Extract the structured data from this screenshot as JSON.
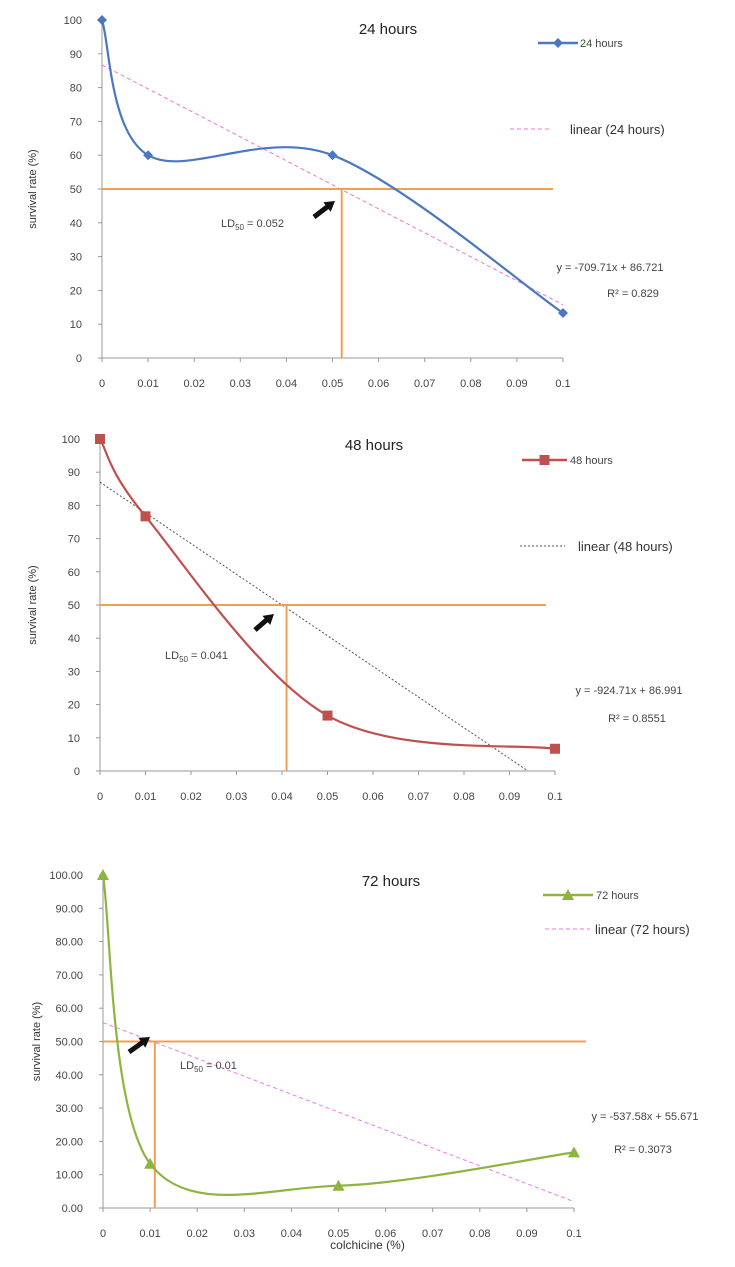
{
  "chart_data": [
    {
      "type": "line",
      "title": "24 hours",
      "ylabel": "survival rate (%)",
      "xlabel": "",
      "x_ticks": [
        "0",
        "0.01",
        "0.02",
        "0.03",
        "0.04",
        "0.05",
        "0.06",
        "0.07",
        "0.08",
        "0.09",
        "0.1"
      ],
      "y_ticks": [
        "0",
        "10",
        "20",
        "30",
        "40",
        "50",
        "60",
        "70",
        "80",
        "90",
        "100"
      ],
      "xlim": [
        0,
        0.1
      ],
      "ylim": [
        0,
        100
      ],
      "series": [
        {
          "name": "24 hours",
          "x": [
            0,
            0.01,
            0.05,
            0.1
          ],
          "y": [
            100,
            60,
            60,
            13.3
          ],
          "color": "#4a78c0",
          "marker": "diamond"
        }
      ],
      "trendline": {
        "name": "linear (24 hours)",
        "slope": -709.71,
        "intercept": 86.721,
        "color": "#ee77cc",
        "dash": "4,3"
      },
      "equation": "y = -709.71x + 86.721",
      "r2": "R² = 0.829",
      "ld50_value": 0.052,
      "ld50_prefix": "LD",
      "ld50_sub": "50",
      "ld50_suffix": " = 0.052",
      "reference_line_y": 50,
      "ref_color": "#f0a050"
    },
    {
      "type": "line",
      "title": "48 hours",
      "ylabel": "survival rate (%)",
      "xlabel": "",
      "x_ticks": [
        "0",
        "0.01",
        "0.02",
        "0.03",
        "0.04",
        "0.05",
        "0.06",
        "0.07",
        "0.08",
        "0.09",
        "0.1"
      ],
      "y_ticks": [
        "0",
        "10",
        "20",
        "30",
        "40",
        "50",
        "60",
        "70",
        "80",
        "90",
        "100"
      ],
      "xlim": [
        0,
        0.1
      ],
      "ylim": [
        0,
        100
      ],
      "series": [
        {
          "name": "48 hours",
          "x": [
            0,
            0.01,
            0.05,
            0.1
          ],
          "y": [
            100,
            76.7,
            16.7,
            6.7
          ],
          "color": "#c0504d",
          "marker": "square"
        }
      ],
      "trendline": {
        "name": "linear (48 hours)",
        "slope": -924.71,
        "intercept": 86.991,
        "color": "#555555",
        "dash": "2,2"
      },
      "equation": "y = -924.71x + 86.991",
      "r2": "R² = 0.8551",
      "ld50_value": 0.041,
      "ld50_prefix": "LD",
      "ld50_sub": "50",
      "ld50_suffix": " = 0.041",
      "reference_line_y": 50,
      "ref_color": "#f0a050"
    },
    {
      "type": "line",
      "title": "72 hours",
      "ylabel": "survival rate (%)",
      "xlabel": "colchicine (%)",
      "x_ticks": [
        "0",
        "0.01",
        "0.02",
        "0.03",
        "0.04",
        "0.05",
        "0.06",
        "0.07",
        "0.08",
        "0.09",
        "0.1"
      ],
      "y_ticks": [
        "0.00",
        "10.00",
        "20.00",
        "30.00",
        "40.00",
        "50.00",
        "60.00",
        "70.00",
        "80.00",
        "90.00",
        "100.00"
      ],
      "xlim": [
        0,
        0.1
      ],
      "ylim": [
        0,
        100
      ],
      "series": [
        {
          "name": "72 hours",
          "x": [
            0,
            0.01,
            0.05,
            0.1
          ],
          "y": [
            100,
            13.3,
            6.7,
            16.7
          ],
          "color": "#8db43e",
          "marker": "triangle"
        }
      ],
      "trendline": {
        "name": "linear (72 hours)",
        "slope": -537.58,
        "intercept": 55.671,
        "color": "#ee77ee",
        "dash": "4,3"
      },
      "equation": "y = -537.58x + 55.671",
      "r2": "R² = 0.3073",
      "ld50_value": 0.011,
      "ld50_prefix": "LD",
      "ld50_sub": "50",
      "ld50_suffix": " = 0.01",
      "reference_line_y": 50,
      "ref_color": "#f0a050"
    }
  ]
}
